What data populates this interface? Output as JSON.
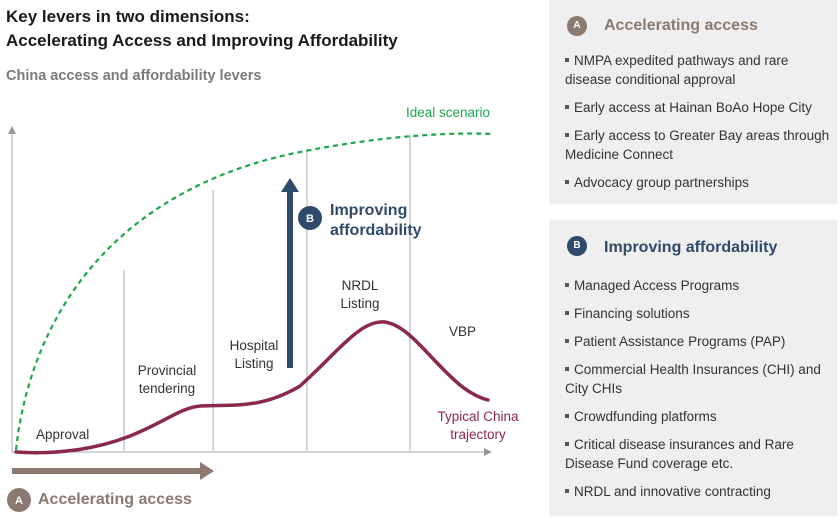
{
  "title_line1": "Key levers in two dimensions:",
  "title_line2": "Accelerating Access and Improving Affordability",
  "subtitle": "China access and affordability levers",
  "diagram": {
    "ideal_label": "Ideal scenario",
    "typical_label_line1": "Typical China",
    "typical_label_line2": "trajectory",
    "stages": {
      "approval": "Approval",
      "provincial_line1": "Provincial",
      "provincial_line2": "tendering",
      "hospital_line1": "Hospital",
      "hospital_line2": "Listing",
      "nrdl_line1": "NRDL",
      "nrdl_line2": "Listing",
      "vbp": "VBP"
    },
    "improving_badge": "B",
    "improving_line1": "Improving",
    "improving_line2": "affordability",
    "accelerating_badge": "A",
    "accelerating_label": "Accelerating access"
  },
  "colors": {
    "ideal_green": "#1aa84a",
    "typical_maroon": "#8b2a48",
    "arrow_navy": "#2f4a6b",
    "arrow_taupe": "#8a7a70",
    "badge_a": "#8a7a70",
    "badge_b": "#2f4a6b"
  },
  "panel_a": {
    "badge": "A",
    "heading": "Accelerating access",
    "items": [
      "NMPA expedited pathways and rare disease conditional approval",
      "Early access at Hainan BoAo Hope City",
      "Early access to Greater Bay areas through Medicine Connect",
      "Advocacy group partnerships"
    ]
  },
  "panel_b": {
    "badge": "B",
    "heading": "Improving affordability",
    "items": [
      "Managed Access Programs",
      "Financing solutions",
      "Patient Assistance Programs (PAP)",
      "Commercial Health Insurances (CHI) and City CHIs",
      "Crowdfunding platforms",
      "Critical disease insurances and Rare Disease Fund coverage etc.",
      "NRDL and innovative contracting"
    ]
  }
}
